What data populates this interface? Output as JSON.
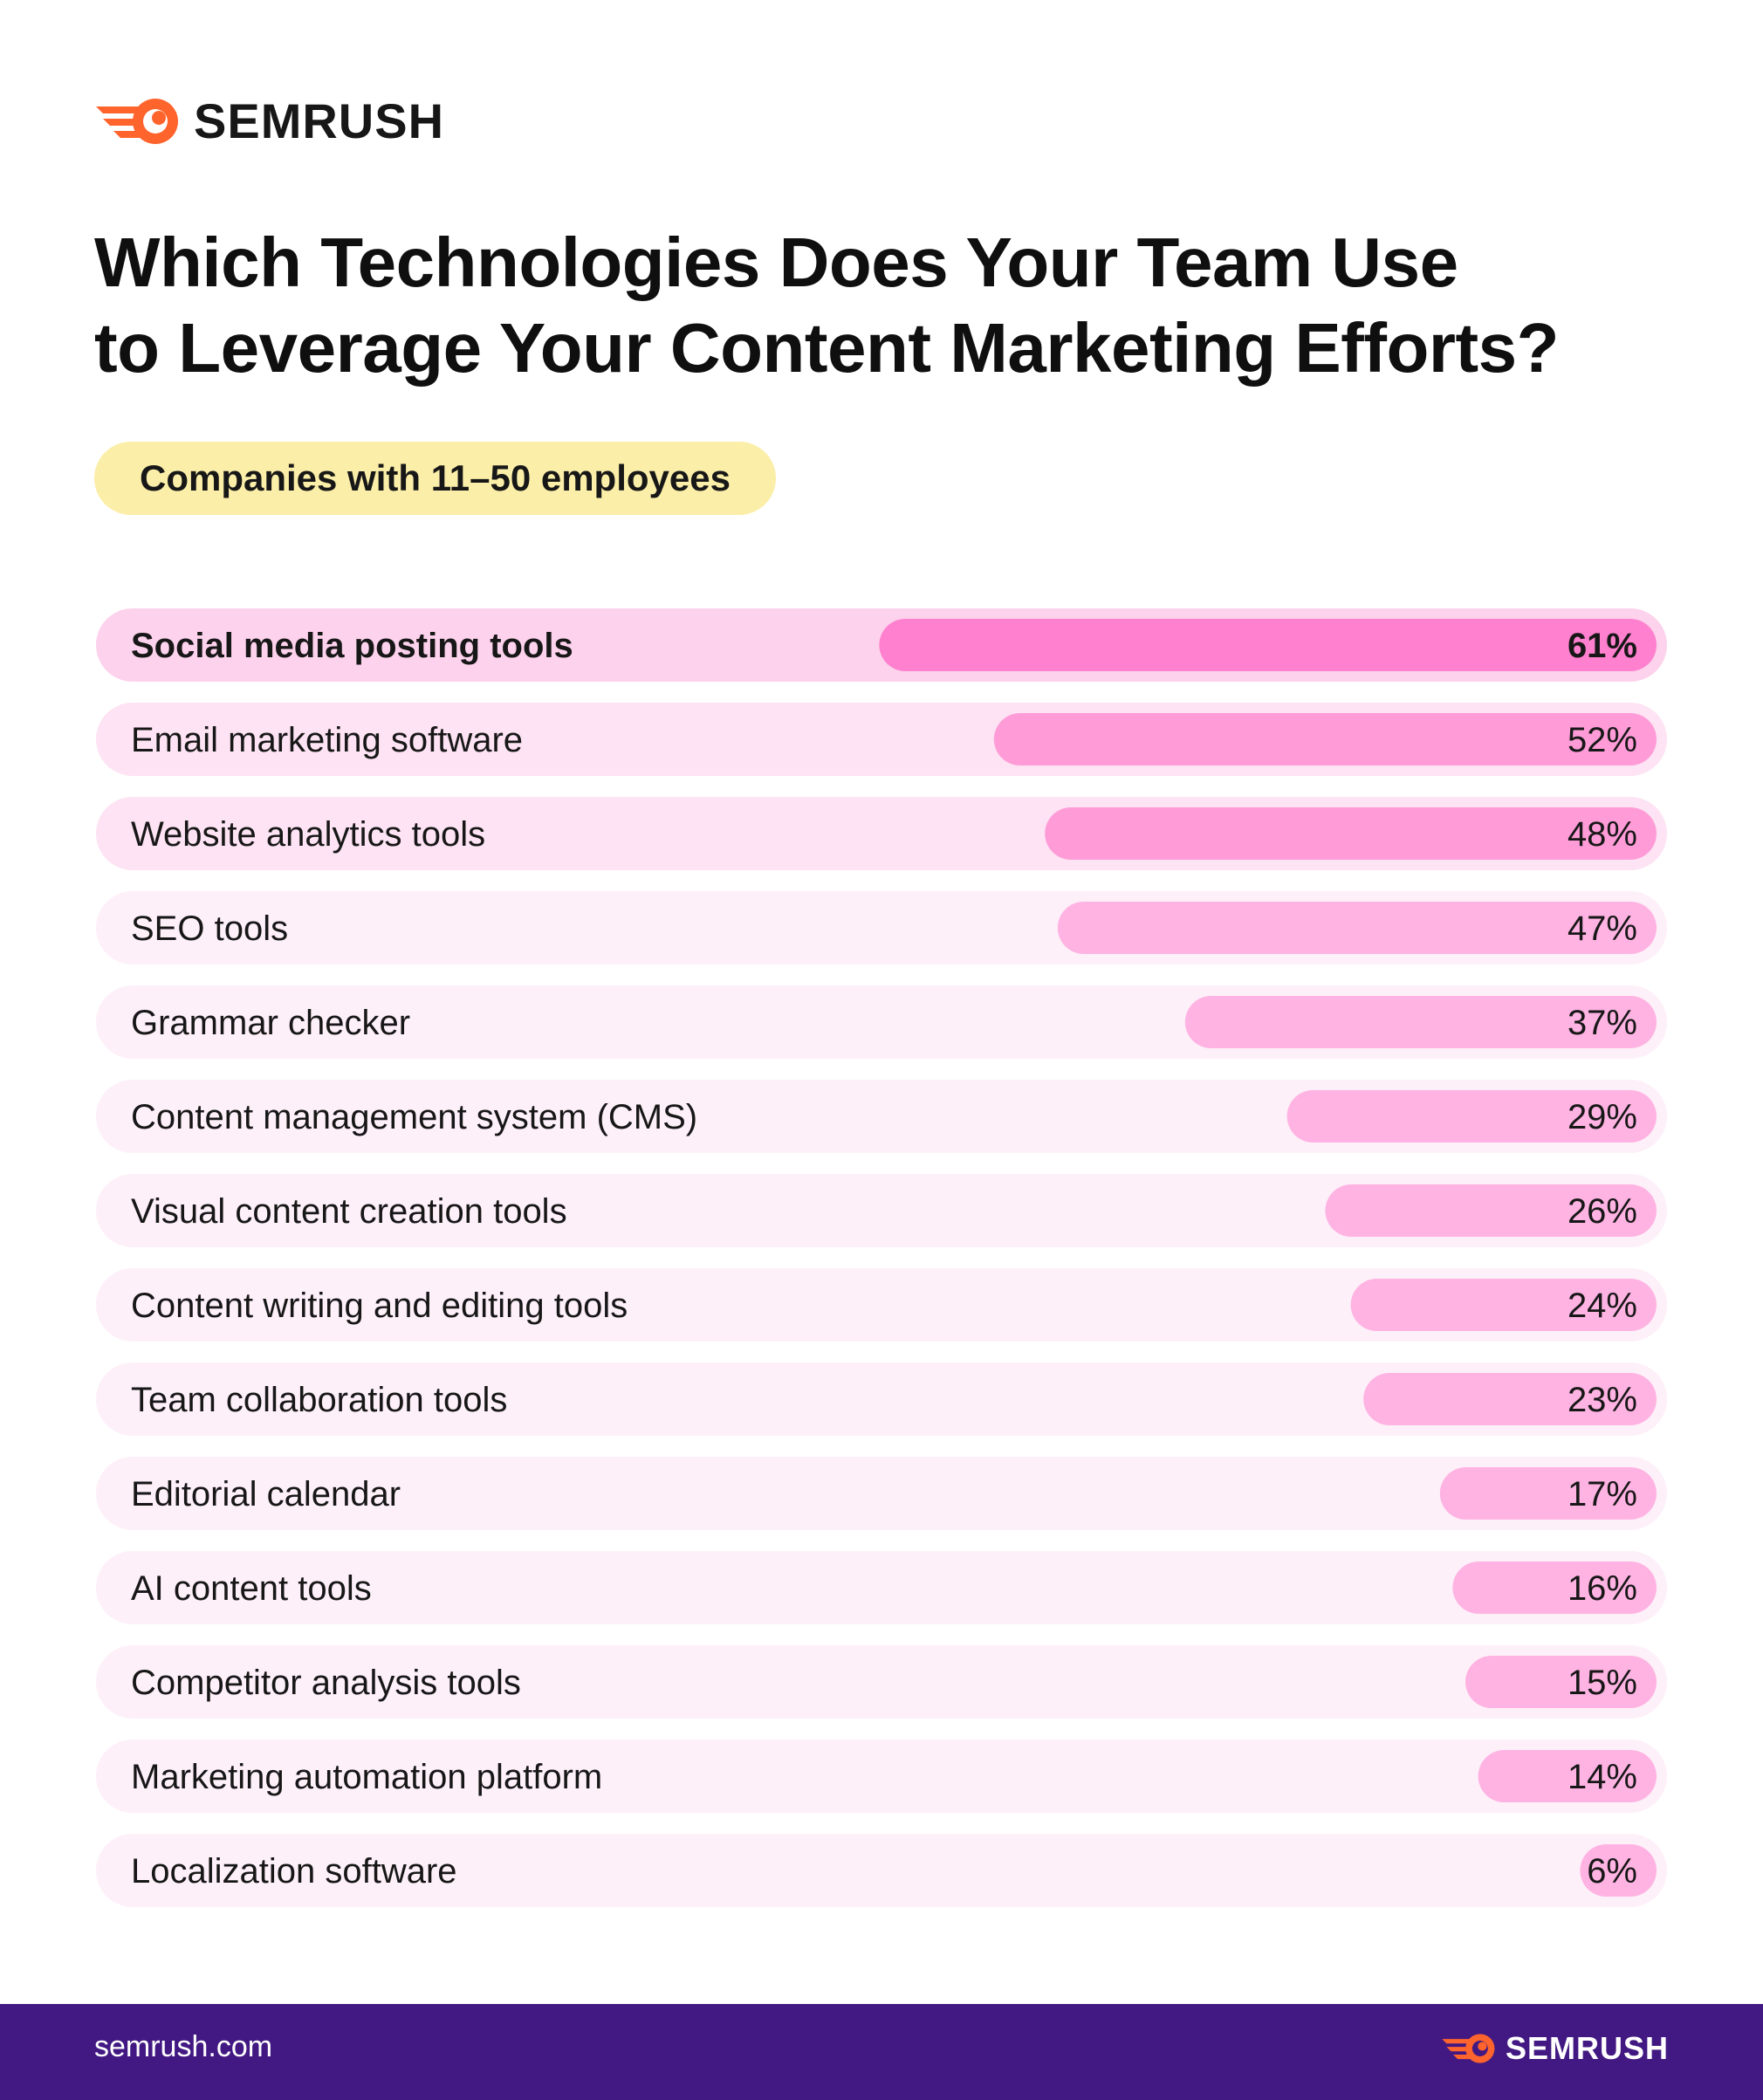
{
  "brand": {
    "name": "SEMRUSH",
    "primary_color": "#ff642d",
    "footer_color": "#421983"
  },
  "header": {
    "title_line1": "Which Technologies Does Your Team Use",
    "title_line2": "to Leverage Your Content Marketing Efforts?",
    "segment_label": "Companies with 11–50 employees",
    "segment_color": "#fbeea8"
  },
  "chart_data": {
    "type": "bar",
    "orientation": "horizontal",
    "value_unit": "%",
    "xlim": [
      0,
      100
    ],
    "grid": false,
    "categories": [
      "Social media posting tools",
      "Email marketing software",
      "Website analytics tools",
      "SEO tools",
      "Grammar checker",
      "Content management system (CMS)",
      "Visual content creation tools",
      "Content writing and editing tools",
      "Team collaboration tools",
      "Editorial calendar",
      "AI content tools",
      "Competitor analysis tools",
      "Marketing automation platform",
      "Localization software"
    ],
    "values": [
      61,
      52,
      48,
      47,
      37,
      29,
      26,
      24,
      23,
      17,
      16,
      15,
      14,
      6
    ],
    "value_labels": [
      "61%",
      "52%",
      "48%",
      "47%",
      "37%",
      "29%",
      "26%",
      "24%",
      "23%",
      "17%",
      "16%",
      "15%",
      "14%",
      "6%"
    ],
    "colors": {
      "rank1_bar": "#ff80ce",
      "rank1_track": "#fdd2ec",
      "rank2_3_bar": "#ff9cd8",
      "rank2_3_track": "#fde3f3",
      "rest_bar": "#ffb3e3",
      "rest_track": "#fef0f9"
    }
  },
  "footer": {
    "url": "semrush.com",
    "brand": "SEMRUSH"
  }
}
